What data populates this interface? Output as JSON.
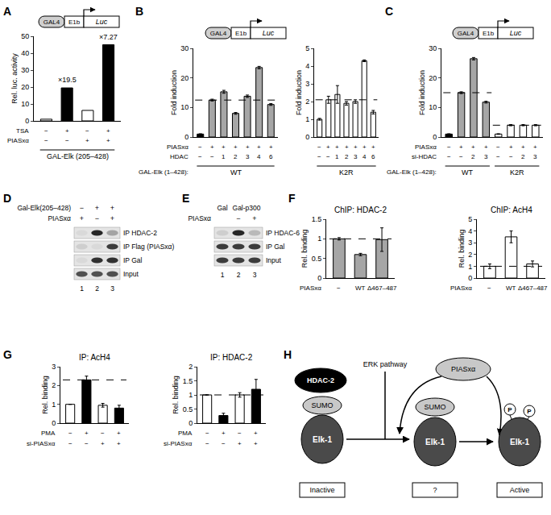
{
  "panel_labels": [
    "A",
    "B",
    "C",
    "D",
    "E",
    "F",
    "G",
    "H"
  ],
  "constructs": [
    [
      "GAL4",
      "E1b",
      "Luc"
    ],
    [
      "GAL4",
      "E1b",
      "Luc"
    ],
    [
      "GAL4",
      "E1b",
      "Luc"
    ]
  ],
  "chart_data": [
    {
      "type": "bar",
      "y_label": "Rel. luc. activity",
      "values": [
        1,
        19.5,
        6.2,
        45
      ],
      "colors": [
        "#ffffff",
        "#000000",
        "#ffffff",
        "#000000"
      ],
      "ylim": [
        0,
        50
      ],
      "yticks": [
        0,
        10,
        20,
        30,
        40,
        50
      ],
      "grid": false,
      "annotations": [
        {
          "text": "×19.5",
          "bar": 1
        },
        {
          "text": "×7.27",
          "bar": 3
        }
      ],
      "conditions": [
        {
          "name": "TSA",
          "values": [
            "−",
            "+",
            "−",
            "+"
          ]
        },
        {
          "name": "PIASxα",
          "values": [
            "−",
            "−",
            "+",
            "+"
          ]
        }
      ],
      "groups": [
        {
          "label": "GAL-Elk (205–428)",
          "from": 0,
          "to": 3
        }
      ]
    },
    {
      "type": "bar",
      "y_label": "Fold induction",
      "values": [
        1,
        12.5,
        15.3,
        8,
        13.8,
        23.5,
        11
      ],
      "errors": [
        0.1,
        0.3,
        0.5,
        0.3,
        0.4,
        0.4,
        0.3
      ],
      "colors": [
        "#000000",
        "#a6a6a6",
        "#a6a6a6",
        "#a6a6a6",
        "#a6a6a6",
        "#a6a6a6",
        "#a6a6a6"
      ],
      "ylim": [
        0,
        30
      ],
      "yticks": [
        0,
        10,
        20,
        30
      ],
      "grid": false,
      "reference_lines": [
        {
          "value": 12.5,
          "from": 0,
          "to": 6
        }
      ],
      "conditions": [
        {
          "name": "PIASxα",
          "values": [
            "−",
            "+",
            "+",
            "+",
            "+",
            "+",
            "+"
          ]
        },
        {
          "name": "HDAC",
          "values": [
            "−",
            "−",
            "1",
            "2",
            "3",
            "4",
            "6"
          ]
        }
      ],
      "group_row_name": "GAL-Elk (1–428):",
      "groups": [
        {
          "label": "WT",
          "from": 0,
          "to": 6
        }
      ]
    },
    {
      "type": "bar",
      "y_label": "Fold induction",
      "values": [
        1,
        2.1,
        2.4,
        1.9,
        2.0,
        4.3,
        1.4
      ],
      "errors": [
        0.05,
        0.2,
        0.5,
        0.1,
        0.1,
        0.05,
        0.1
      ],
      "colors": [
        "#ffffff",
        "#ffffff",
        "#ffffff",
        "#ffffff",
        "#ffffff",
        "#ffffff",
        "#ffffff"
      ],
      "ylim": [
        0,
        5
      ],
      "yticks": [
        0,
        1,
        2,
        3,
        4,
        5
      ],
      "grid": false,
      "reference_lines": [
        {
          "value": 2.1,
          "from": 0,
          "to": 6
        }
      ],
      "conditions": [
        {
          "values": [
            "−",
            "+",
            "+",
            "+",
            "+",
            "+",
            "+"
          ]
        },
        {
          "values": [
            "−",
            "−",
            "1",
            "2",
            "3",
            "4",
            "6"
          ]
        }
      ],
      "groups": [
        {
          "label": "K2R",
          "from": 0,
          "to": 6
        }
      ]
    },
    {
      "type": "bar",
      "y_label": "Fold induction",
      "values": [
        1,
        15,
        26.5,
        11.8,
        1,
        4,
        4,
        4
      ],
      "errors": [
        0.1,
        0.3,
        0.4,
        0.3,
        0.1,
        0.2,
        0.2,
        0.2
      ],
      "colors": [
        "#000000",
        "#a6a6a6",
        "#a6a6a6",
        "#a6a6a6",
        "#ffffff",
        "#ffffff",
        "#ffffff",
        "#ffffff"
      ],
      "ylim": [
        0,
        30
      ],
      "yticks": [
        0,
        10,
        20,
        30
      ],
      "grid": false,
      "reference_lines": [
        {
          "value": 15,
          "from": 0,
          "to": 3
        },
        {
          "value": 4,
          "from": 4,
          "to": 7
        }
      ],
      "conditions": [
        {
          "name": "PIASxα",
          "values": [
            "−",
            "+",
            "+",
            "+",
            "−",
            "+",
            "+",
            "+"
          ]
        },
        {
          "name": "si-HDAC",
          "values": [
            "−",
            "−",
            "2",
            "3",
            "−",
            "−",
            "2",
            "3"
          ]
        }
      ],
      "group_row_name": "GAL-Elk (1–428):",
      "groups": [
        {
          "label": "WT",
          "from": 0,
          "to": 3
        },
        {
          "label": "K2R",
          "from": 4,
          "to": 7
        }
      ]
    },
    {
      "type": "bar",
      "title": "ChIP: HDAC-2",
      "y_label": "Rel. binding",
      "values": [
        1,
        0.6,
        0.98
      ],
      "errors": [
        0.03,
        0.03,
        0.3
      ],
      "colors": [
        "#a6a6a6",
        "#a6a6a6",
        "#a6a6a6"
      ],
      "ylim": [
        0,
        1.5
      ],
      "yticks": [
        0,
        0.5,
        1,
        1.5
      ],
      "grid": false,
      "reference_lines": [
        {
          "value": 1,
          "from": 0,
          "to": 2
        }
      ],
      "conditions": [
        {
          "name": "PIASxα",
          "values": [
            "−",
            "WT",
            "Δ467–487"
          ]
        }
      ]
    },
    {
      "type": "bar",
      "title": "ChIP: AcH4",
      "y_label": "Rel. binding",
      "values": [
        1,
        3.5,
        1.2
      ],
      "errors": [
        0.2,
        0.5,
        0.25
      ],
      "colors": [
        "#ffffff",
        "#ffffff",
        "#ffffff"
      ],
      "ylim": [
        0,
        5
      ],
      "yticks": [
        0,
        1,
        2,
        3,
        4,
        5
      ],
      "grid": false,
      "reference_lines": [
        {
          "value": 1,
          "from": 0,
          "to": 2
        }
      ],
      "conditions": [
        {
          "name": "PIASxα",
          "values": [
            "−",
            "WT",
            "Δ467–487"
          ]
        }
      ]
    },
    {
      "type": "bar",
      "title": "IP: AcH4",
      "y_label": "Rel. binding",
      "values": [
        1,
        2.3,
        0.95,
        0.8
      ],
      "errors": [
        0,
        0.2,
        0.1,
        0.15
      ],
      "colors": [
        "#ffffff",
        "#000000",
        "#ffffff",
        "#000000"
      ],
      "ylim": [
        0,
        3
      ],
      "yticks": [
        0,
        1,
        2,
        3
      ],
      "grid": false,
      "reference_lines": [
        {
          "value": 2.3,
          "from": 0,
          "to": 3
        }
      ],
      "conditions": [
        {
          "name": "PMA",
          "values": [
            "−",
            "+",
            "−",
            "+"
          ]
        },
        {
          "name": "si-PIASxα",
          "values": [
            "−",
            "−",
            "+",
            "+"
          ]
        }
      ]
    },
    {
      "type": "bar",
      "title": "IP: HDAC-2",
      "y_label": "Rel. binding",
      "values": [
        1,
        0.27,
        1,
        1.2
      ],
      "errors": [
        0,
        0.08,
        0.08,
        0.35
      ],
      "colors": [
        "#ffffff",
        "#000000",
        "#ffffff",
        "#000000"
      ],
      "ylim": [
        0,
        2
      ],
      "yticks": [
        0,
        0.5,
        1,
        1.5,
        2
      ],
      "grid": false,
      "reference_lines": [
        {
          "value": 1,
          "from": 0,
          "to": 3
        }
      ],
      "conditions": [
        {
          "name": "PMA",
          "values": [
            "−",
            "+",
            "−",
            "+"
          ]
        },
        {
          "name": "si-PIASxα",
          "values": [
            "−",
            "−",
            "+",
            "+"
          ]
        }
      ]
    }
  ],
  "gels": [
    {
      "header_rows": [
        {
          "name": "Gal-Elk(205–428)",
          "values": [
            "−",
            "+",
            "+"
          ]
        },
        {
          "name": "PIASxα",
          "values": [
            "+",
            "−",
            "+"
          ]
        }
      ],
      "rows": [
        {
          "label": "IP HDAC-2",
          "bands": [
            0.05,
            0.9,
            0.3
          ]
        },
        {
          "label": "IP Flag (PIASxα)",
          "bands": [
            0.1,
            0.05,
            0.8
          ]
        },
        {
          "label": "IP Gal",
          "bands": [
            0.05,
            0.85,
            0.85
          ]
        },
        {
          "label": "Input",
          "bands": [
            0.7,
            0.7,
            0.7
          ]
        }
      ],
      "lanes": [
        "1",
        "2",
        "3"
      ]
    },
    {
      "header_rows": [
        {
          "groups": [
            {
              "label": "Gal",
              "from": 0,
              "to": 0
            },
            {
              "label": "Gal-p300",
              "from": 1,
              "to": 2
            }
          ]
        },
        {
          "name": "PIASxα",
          "values": [
            null,
            "−",
            "+"
          ]
        }
      ],
      "rows": [
        {
          "label": "IP HDAC-6",
          "bands": [
            0.1,
            0.9,
            0.2
          ]
        },
        {
          "label": "IP Gal",
          "bands": [
            0.8,
            0.8,
            0.8
          ]
        },
        {
          "label": "Input",
          "bands": [
            0.8,
            0.8,
            0.8
          ]
        }
      ],
      "lanes": [
        "1",
        "2",
        "3"
      ]
    }
  ],
  "model": {
    "inactive": {
      "corepressor": "HDAC-2",
      "modifier": "SUMO",
      "protein": "Elk-1",
      "state": "Inactive"
    },
    "signals": [
      "ERK pathway",
      "PIASxα"
    ],
    "intermediate": {
      "modifier": "SUMO",
      "protein": "Elk-1",
      "state": "?"
    },
    "active": {
      "protein": "Elk-1",
      "phosphates": [
        "P",
        "P"
      ],
      "state": "Active"
    }
  }
}
